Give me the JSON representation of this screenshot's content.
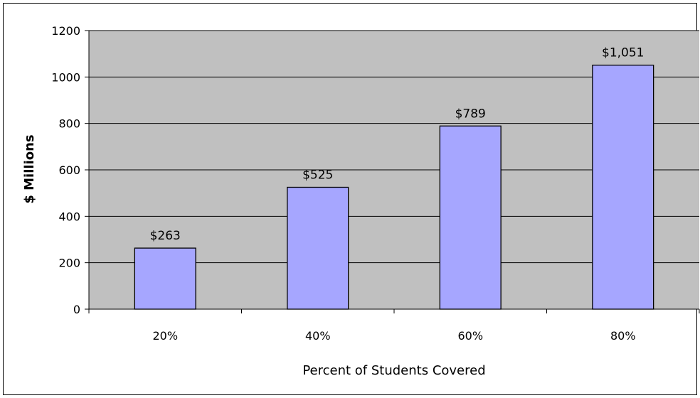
{
  "chart_data": {
    "type": "bar",
    "title": "",
    "xlabel": "Percent of Students Covered",
    "ylabel": "$ Millions",
    "categories": [
      "20%",
      "40%",
      "60%",
      "80%"
    ],
    "values": [
      263,
      525,
      789,
      1051
    ],
    "data_labels": [
      "$263",
      "$525",
      "$789",
      "$1,051"
    ],
    "ylim": [
      0,
      1200
    ],
    "yticks": [
      0,
      200,
      400,
      600,
      800,
      1000,
      1200
    ],
    "grid": true,
    "legend": "none",
    "colors": {
      "bar_fill": "#a6a6ff",
      "plot_background": "#c0c0c0",
      "gridline": "#000000"
    }
  }
}
